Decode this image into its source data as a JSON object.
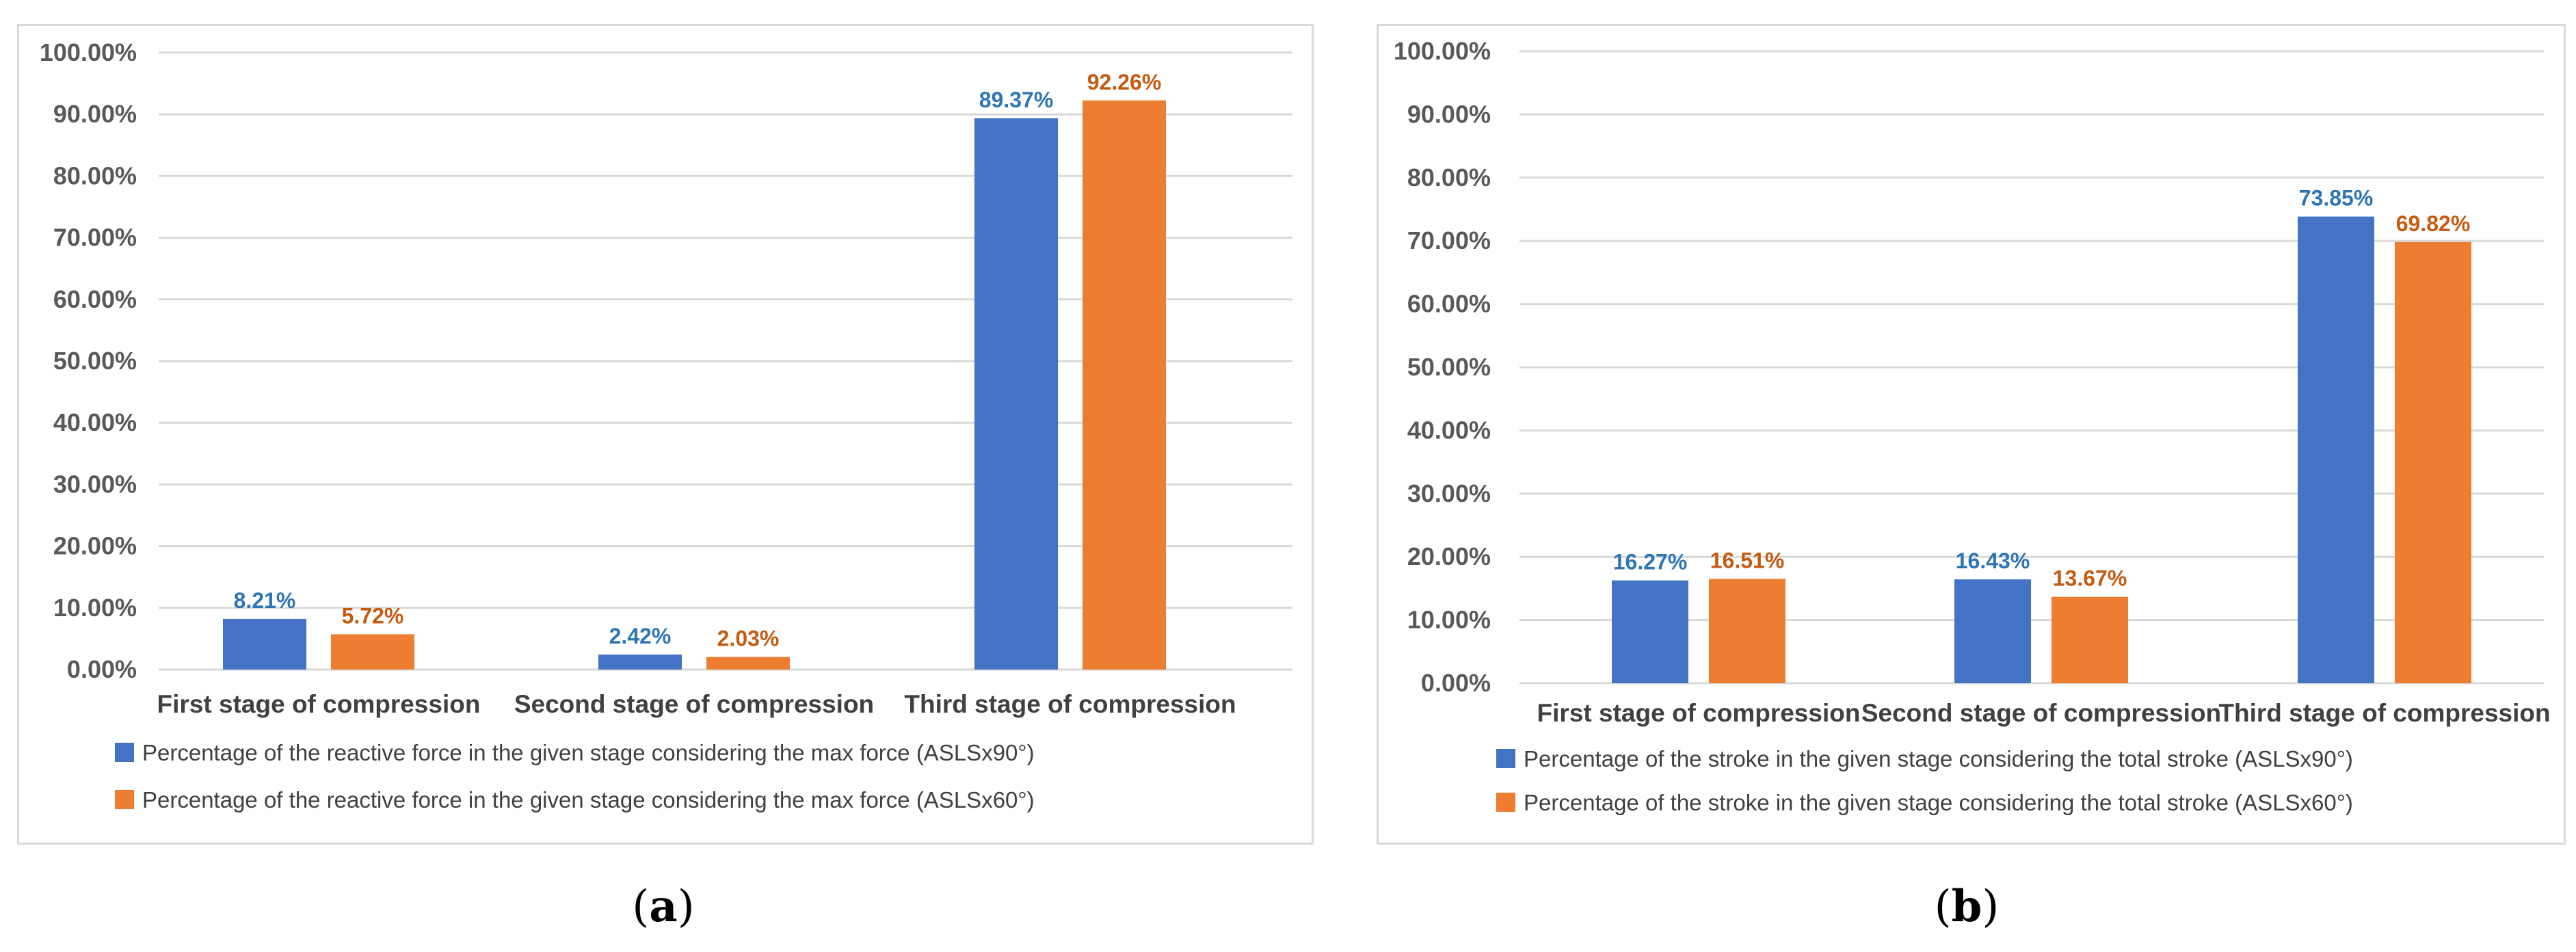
{
  "colors": {
    "series1": "#4472C4",
    "series2": "#ED7D31",
    "grid": "#d9d9d9",
    "label1": "#2E75B6",
    "label2": "#C55A11"
  },
  "chart_data": [
    {
      "type": "bar",
      "panel_label": "a",
      "categories": [
        "First stage of compression",
        "Second stage of compression",
        "Third stage of compression"
      ],
      "series": [
        {
          "name": "Percentage of the reactive force in the given stage considering the max force (ASLSx90°)",
          "values": [
            8.21,
            2.42,
            89.37
          ],
          "labels": [
            "8.21%",
            "2.42%",
            "89.37%"
          ]
        },
        {
          "name": "Percentage of the reactive force in the given stage considering the max force (ASLSx60°)",
          "values": [
            5.72,
            2.03,
            92.26
          ],
          "labels": [
            "5.72%",
            "2.03%",
            "92.26%"
          ]
        }
      ],
      "yticks": [
        "0.00%",
        "10.00%",
        "20.00%",
        "30.00%",
        "40.00%",
        "50.00%",
        "60.00%",
        "70.00%",
        "80.00%",
        "90.00%",
        "100.00%"
      ],
      "ylim": [
        0,
        100
      ],
      "grid": true,
      "legend": "bottom"
    },
    {
      "type": "bar",
      "panel_label": "b",
      "categories": [
        "First stage of compression",
        "Second stage of compression",
        "Third stage of compression"
      ],
      "series": [
        {
          "name": "Percentage of the stroke in the given stage considering the total stroke (ASLSx90°)",
          "values": [
            16.27,
            16.43,
            73.85
          ],
          "labels": [
            "16.27%",
            "16.43%",
            "73.85%"
          ]
        },
        {
          "name": "Percentage of the stroke in the given stage considering the total stroke (ASLSx60°)",
          "values": [
            16.51,
            13.67,
            69.82
          ],
          "labels": [
            "16.51%",
            "13.67%",
            "69.82%"
          ]
        }
      ],
      "yticks": [
        "0.00%",
        "10.00%",
        "20.00%",
        "30.00%",
        "40.00%",
        "50.00%",
        "60.00%",
        "70.00%",
        "80.00%",
        "90.00%",
        "100.00%"
      ],
      "ylim": [
        0,
        100
      ],
      "grid": true,
      "legend": "bottom"
    }
  ]
}
